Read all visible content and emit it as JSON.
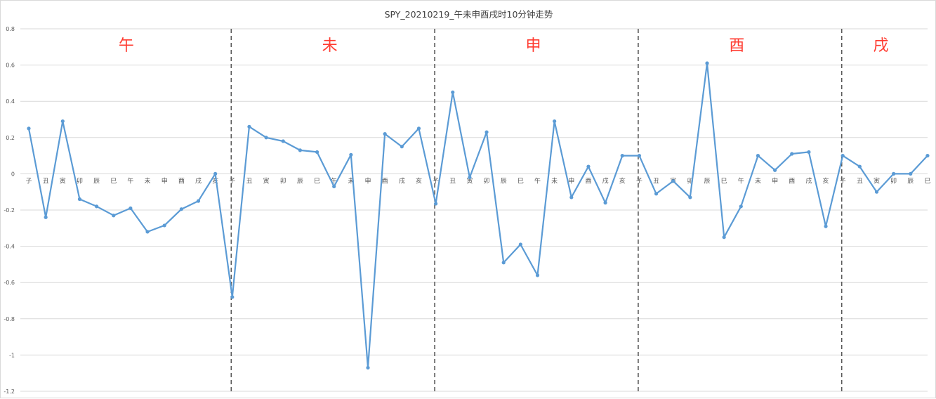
{
  "chart_data": {
    "type": "line",
    "title": "SPY_20210219_午未申酉戌时10分钟走势",
    "xlabel": "",
    "ylabel": "",
    "ylim": [
      -1.2,
      0.8
    ],
    "yticks": [
      "0.8",
      "0.6",
      "0.4",
      "0.2",
      "0",
      "-0.2",
      "-0.4",
      "-0.6",
      "-0.8",
      "-1",
      "-1.2"
    ],
    "grid": true,
    "series_color": "#5b9bd5",
    "section_label_color": "#ff3b30",
    "categories": [
      "子",
      "丑",
      "寅",
      "卯",
      "辰",
      "巳",
      "午",
      "未",
      "申",
      "酉",
      "戌",
      "亥",
      "子",
      "丑",
      "寅",
      "卯",
      "辰",
      "巳",
      "午",
      "未",
      "申",
      "酉",
      "戌",
      "亥",
      "子",
      "丑",
      "寅",
      "卯",
      "辰",
      "巳",
      "午",
      "未",
      "申",
      "酉",
      "戌",
      "亥",
      "子",
      "丑",
      "寅",
      "卯",
      "辰",
      "巳",
      "午",
      "未",
      "申",
      "酉",
      "戌",
      "亥",
      "子",
      "丑",
      "寅",
      "卯",
      "辰",
      "巳"
    ],
    "series": [
      {
        "values": [
          0.25,
          -0.24,
          0.29,
          -0.14,
          -0.18,
          -0.23,
          -0.19,
          -0.32,
          -0.285,
          -0.195,
          -0.15,
          0.0,
          -0.68,
          0.26,
          0.2,
          0.18,
          0.13,
          0.12,
          -0.07,
          0.105,
          -1.07,
          0.22,
          0.15,
          0.25,
          -0.165,
          0.45,
          -0.02,
          0.23,
          -0.49,
          -0.39,
          -0.56,
          0.29,
          -0.13,
          0.04,
          -0.16,
          0.1,
          0.1,
          -0.11,
          -0.04,
          -0.13,
          0.61,
          -0.35,
          -0.18,
          0.1,
          0.02,
          0.11,
          0.12,
          -0.29,
          0.1,
          0.04,
          -0.1,
          0.0,
          0.0,
          0.1
        ]
      }
    ],
    "sections": [
      {
        "label": "午",
        "start": 0,
        "end": 12
      },
      {
        "label": "未",
        "start": 12,
        "end": 24
      },
      {
        "label": "申",
        "start": 24,
        "end": 36
      },
      {
        "label": "酉",
        "start": 36,
        "end": 48
      },
      {
        "label": "戌",
        "start": 48,
        "end": 53
      }
    ],
    "dividers_after_index": [
      12,
      24,
      36,
      48
    ]
  }
}
